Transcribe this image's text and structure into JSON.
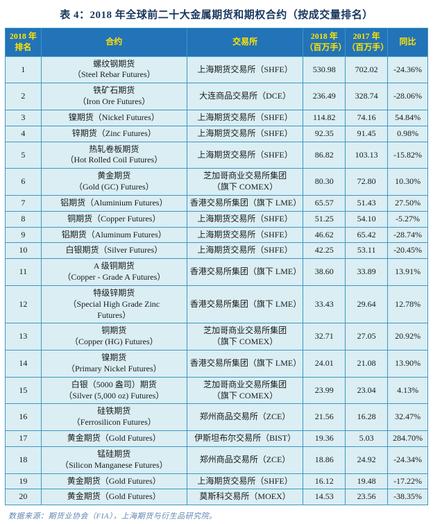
{
  "title": "表 4：2018 年全球前二十大金属期货和期权合约（按成交量排名）",
  "colors": {
    "header_bg": "#2273B8",
    "header_text": "#FFE400",
    "cell_bg": "#DAEEF3",
    "border": "#3D97C4",
    "title_text": "#17365D",
    "footer_text": "#6186B3"
  },
  "table": {
    "headers": [
      "2018 年\n排名",
      "合约",
      "交易所",
      "2018 年\n（百万手）",
      "2017 年\n（百万手）",
      "同比"
    ],
    "rows": [
      {
        "rank": "1",
        "contract": "螺纹钢期货\n（Steel Rebar Futures）",
        "exchange": "上海期货交易所（SHFE）",
        "v2018": "530.98",
        "v2017": "702.02",
        "yoy": "-24.36%"
      },
      {
        "rank": "2",
        "contract": "铁矿石期货\n（Iron Ore Futures）",
        "exchange": "大连商品交易所（DCE）",
        "v2018": "236.49",
        "v2017": "328.74",
        "yoy": "-28.06%"
      },
      {
        "rank": "3",
        "contract": "镍期货（Nickel Futures）",
        "exchange": "上海期货交易所（SHFE）",
        "v2018": "114.82",
        "v2017": "74.16",
        "yoy": "54.84%"
      },
      {
        "rank": "4",
        "contract": "锌期货（Zinc Futures）",
        "exchange": "上海期货交易所（SHFE）",
        "v2018": "92.35",
        "v2017": "91.45",
        "yoy": "0.98%"
      },
      {
        "rank": "5",
        "contract": "热轧卷板期货\n（Hot Rolled Coil Futures）",
        "exchange": "上海期货交易所（SHFE）",
        "v2018": "86.82",
        "v2017": "103.13",
        "yoy": "-15.82%"
      },
      {
        "rank": "6",
        "contract": "黄金期货\n（Gold (GC) Futures）",
        "exchange": "芝加哥商业交易所集团\n（旗下 COMEX）",
        "v2018": "80.30",
        "v2017": "72.80",
        "yoy": "10.30%"
      },
      {
        "rank": "7",
        "contract": "铝期货（Aluminium Futures）",
        "exchange": "香港交易所集团（旗下 LME）",
        "v2018": "65.57",
        "v2017": "51.43",
        "yoy": "27.50%"
      },
      {
        "rank": "8",
        "contract": "铜期货（Copper Futures）",
        "exchange": "上海期货交易所（SHFE）",
        "v2018": "51.25",
        "v2017": "54.10",
        "yoy": "-5.27%"
      },
      {
        "rank": "9",
        "contract": "铝期货（Aluminum Futures）",
        "exchange": "上海期货交易所（SHFE）",
        "v2018": "46.62",
        "v2017": "65.42",
        "yoy": "-28.74%"
      },
      {
        "rank": "10",
        "contract": "白银期货（Silver Futures）",
        "exchange": "上海期货交易所（SHFE）",
        "v2018": "42.25",
        "v2017": "53.11",
        "yoy": "-20.45%"
      },
      {
        "rank": "11",
        "contract": "A 级铜期货\n（Copper - Grade A Futures）",
        "exchange": "香港交易所集团（旗下 LME）",
        "v2018": "38.60",
        "v2017": "33.89",
        "yoy": "13.91%"
      },
      {
        "rank": "12",
        "contract": "特级锌期货\n（Special High Grade Zinc\nFutures）",
        "exchange": "香港交易所集团（旗下 LME）",
        "v2018": "33.43",
        "v2017": "29.64",
        "yoy": "12.78%"
      },
      {
        "rank": "13",
        "contract": "铜期货\n（Copper (HG) Futures）",
        "exchange": "芝加哥商业交易所集团\n（旗下 COMEX）",
        "v2018": "32.71",
        "v2017": "27.05",
        "yoy": "20.92%"
      },
      {
        "rank": "14",
        "contract": "镍期货\n（Primary Nickel Futures）",
        "exchange": "香港交易所集团（旗下 LME）",
        "v2018": "24.01",
        "v2017": "21.08",
        "yoy": "13.90%"
      },
      {
        "rank": "15",
        "contract": "白银（5000 盎司）期货\n（Silver (5,000 oz) Futures）",
        "exchange": "芝加哥商业交易所集团\n（旗下 COMEX）",
        "v2018": "23.99",
        "v2017": "23.04",
        "yoy": "4.13%"
      },
      {
        "rank": "16",
        "contract": "硅铁期货\n（Ferrosilicon Futures）",
        "exchange": "郑州商品交易所（ZCE）",
        "v2018": "21.56",
        "v2017": "16.28",
        "yoy": "32.47%"
      },
      {
        "rank": "17",
        "contract": "黄金期货（Gold Futures）",
        "exchange": "伊斯坦布尔交易所（BIST）",
        "v2018": "19.36",
        "v2017": "5.03",
        "yoy": "284.70%"
      },
      {
        "rank": "18",
        "contract": "锰硅期货\n（Silicon Manganese Futures）",
        "exchange": "郑州商品交易所（ZCE）",
        "v2018": "18.86",
        "v2017": "24.92",
        "yoy": "-24.34%"
      },
      {
        "rank": "19",
        "contract": "黄金期货（Gold Futures）",
        "exchange": "上海期货交易所（SHFE）",
        "v2018": "16.12",
        "v2017": "19.48",
        "yoy": "-17.22%"
      },
      {
        "rank": "20",
        "contract": "黄金期货（Gold Futures）",
        "exchange": "莫斯科交易所（MOEX）",
        "v2018": "14.53",
        "v2017": "23.56",
        "yoy": "-38.35%"
      }
    ]
  },
  "footer": "数据来源：期货业协会（FIA），上海期货与衍生品研究院。"
}
